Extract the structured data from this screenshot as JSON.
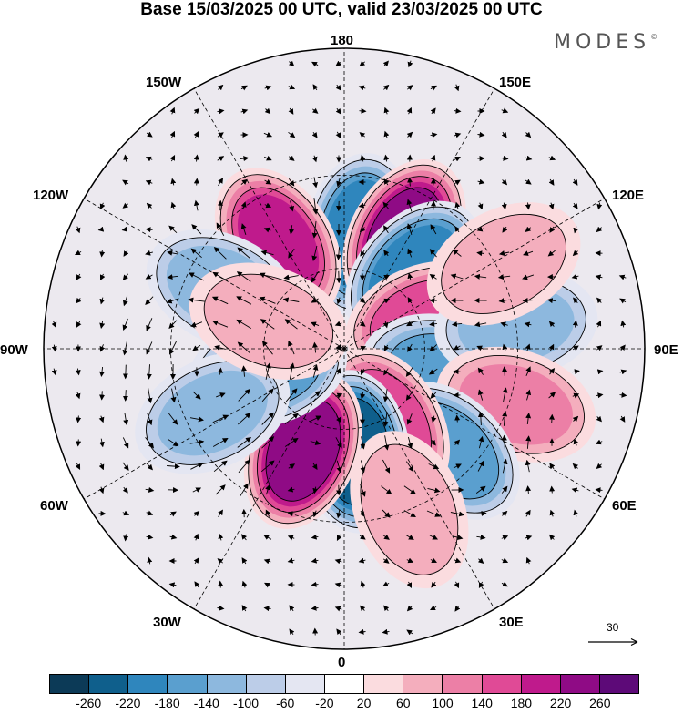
{
  "title": "Base 15/03/2025 00 UTC, valid 23/03/2025 00 UTC",
  "brand": "MODES",
  "brand_mark": "©",
  "longitude_labels": {
    "lon_180": "180",
    "lon_150E": "150E",
    "lon_120E": "120E",
    "lon_90E": "90E",
    "lon_60E": "60E",
    "lon_30E": "30E",
    "lon_0": "0",
    "lon_30W": "30W",
    "lon_60W": "60W",
    "lon_90W": "90W",
    "lon_120W": "120W",
    "lon_150W": "150W"
  },
  "vector_reference": "30",
  "colorbar": {
    "colors": [
      "#0c3a57",
      "#0f5f8c",
      "#2f86bd",
      "#5a9fcf",
      "#8db8de",
      "#bccde8",
      "#e4e6f2",
      "#ffffff",
      "#fbdcdf",
      "#f4aebd",
      "#ec7fa6",
      "#e04a96",
      "#bf1a8c",
      "#8f0b85",
      "#5d0a78"
    ],
    "tick_labels": [
      "-260",
      "-220",
      "-180",
      "-140",
      "-100",
      "-60",
      "-20",
      "20",
      "60",
      "100",
      "140",
      "180",
      "220",
      "260"
    ]
  },
  "map": {
    "projection": "north polar stereographic",
    "background_color": "#ece9ef",
    "anomaly_centers": [
      {
        "lon": 172,
        "lat": 48,
        "value": -210
      },
      {
        "lon": 152,
        "lat": 44,
        "value": 235
      },
      {
        "lon": 138,
        "lat": 52,
        "value": -205
      },
      {
        "lon": 110,
        "lat": 58,
        "value": 165
      },
      {
        "lon": 78,
        "lat": 53,
        "value": -145
      },
      {
        "lon": 98,
        "lat": 30,
        "value": -110
      },
      {
        "lon": 118,
        "lat": 28,
        "value": 80
      },
      {
        "lon": 72,
        "lat": 28,
        "value": 110
      },
      {
        "lon": 46,
        "lat": 38,
        "value": -170
      },
      {
        "lon": 30,
        "lat": 58,
        "value": 175
      },
      {
        "lon": 6,
        "lat": 52,
        "value": -255
      },
      {
        "lon": 22,
        "lat": 30,
        "value": 90
      },
      {
        "lon": 338,
        "lat": 50,
        "value": 245
      },
      {
        "lon": 286,
        "lat": 60,
        "value": -155
      },
      {
        "lon": 296,
        "lat": 38,
        "value": -110
      },
      {
        "lon": 212,
        "lat": 45,
        "value": 195
      },
      {
        "lon": 244,
        "lat": 42,
        "value": -125
      },
      {
        "lon": 250,
        "lat": 60,
        "value": 80
      }
    ]
  }
}
